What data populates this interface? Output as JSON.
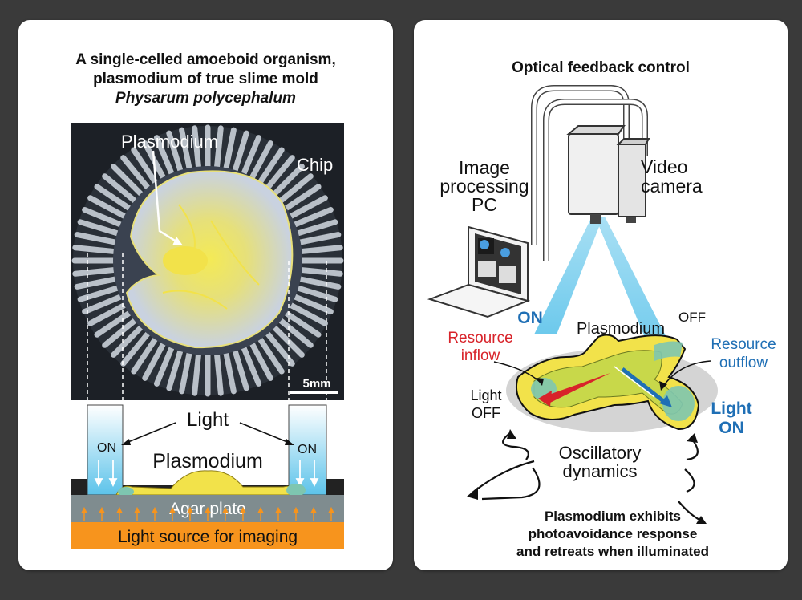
{
  "left_panel": {
    "title_line1": "A single-celled amoeboid organism,",
    "title_line2": "plasmodium of true slime mold",
    "title_line3": "Physarum polycephalum",
    "photo": {
      "label_plasmodium": "Plasmodium",
      "label_chip": "Chip",
      "scale_bar": "5mm"
    },
    "cross_section": {
      "light": "Light",
      "on_left": "ON",
      "on_right": "ON",
      "plasmodium": "Plasmodium",
      "agar": "Agar plate",
      "light_source": "Light source for imaging"
    }
  },
  "right_panel": {
    "title": "Optical feedback control",
    "pc_line1": "Image",
    "pc_line2": "processing",
    "pc_line3": "PC",
    "camera_line1": "Video",
    "camera_line2": "camera",
    "on_label": "ON",
    "off_label": "OFF",
    "plasmodium": "Plasmodium",
    "resource_inflow_1": "Resource",
    "resource_inflow_2": "inflow",
    "resource_outflow_1": "Resource",
    "resource_outflow_2": "outflow",
    "light_off_1": "Light",
    "light_off_2": "OFF",
    "light_on_1": "Light",
    "light_on_2": "ON",
    "oscillatory_1": "Oscillatory",
    "oscillatory_2": "dynamics",
    "caption_1": "Plasmodium exhibits",
    "caption_2": "photoavoidance response",
    "caption_3": "and retreats when illuminated"
  },
  "colors": {
    "background": "#3a3a3a",
    "inflow_red": "#d8232a",
    "outflow_blue": "#1f6fb5",
    "light_blue": "#5cc3ea",
    "plasmodium_yellow": "#f2e24a",
    "light_source_orange": "#f7941d"
  }
}
